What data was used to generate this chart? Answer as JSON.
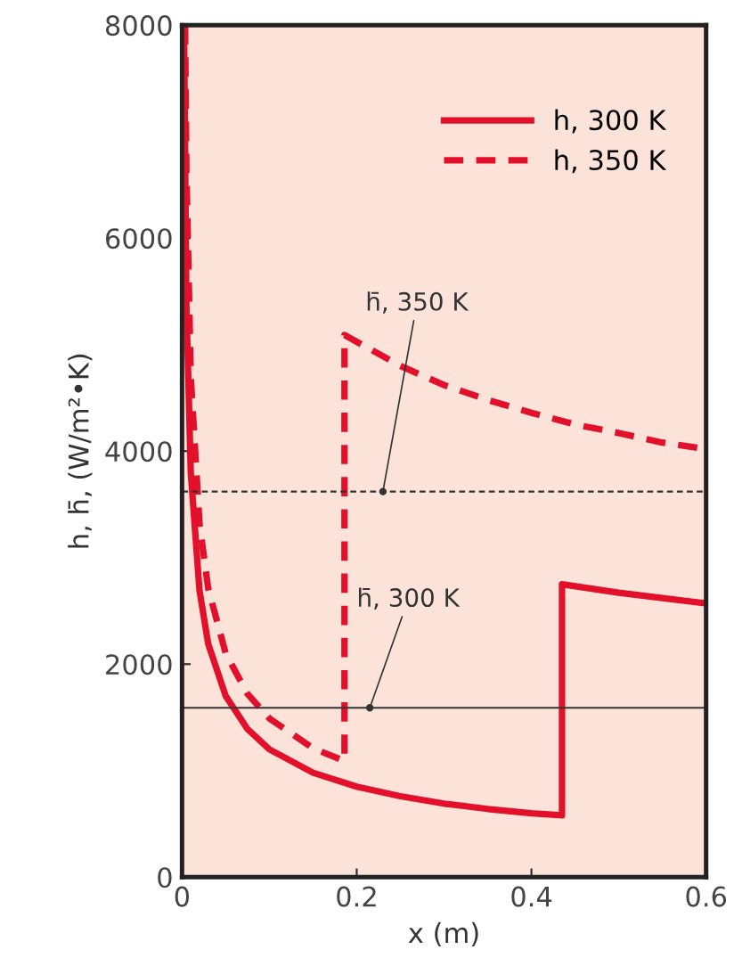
{
  "chart_data": {
    "type": "line",
    "xlabel": "x (m)",
    "ylabel": "h, h̄, (W/m²•K)",
    "xlim": [
      0,
      0.6
    ],
    "ylim": [
      0,
      8000
    ],
    "xticks": [
      0,
      0.2,
      0.4,
      0.6
    ],
    "yticks": [
      0,
      2000,
      4000,
      6000,
      8000
    ],
    "grid": false,
    "legend": "top right",
    "series": [
      {
        "name": "h, 300 K",
        "color": "#e3102b",
        "line_style": "solid",
        "x": [
          0.0023,
          0.005,
          0.01,
          0.02,
          0.03,
          0.05,
          0.075,
          0.1,
          0.15,
          0.2,
          0.25,
          0.3,
          0.35,
          0.4,
          0.435,
          0.435,
          0.5,
          0.55,
          0.6
        ],
        "values": [
          8000,
          5370,
          3800,
          2690,
          2190,
          1700,
          1390,
          1200,
          980,
          850,
          760,
          690,
          640,
          600,
          580,
          2750,
          2670,
          2620,
          2570
        ]
      },
      {
        "name": "h, 350 K",
        "color": "#e3102b",
        "line_style": "dashed",
        "x": [
          0.0035,
          0.005,
          0.01,
          0.02,
          0.03,
          0.05,
          0.075,
          0.1,
          0.15,
          0.186,
          0.186,
          0.25,
          0.3,
          0.35,
          0.4,
          0.45,
          0.5,
          0.55,
          0.6
        ],
        "values": [
          8000,
          6650,
          4700,
          3320,
          2710,
          2100,
          1720,
          1490,
          1210,
          1090,
          5090,
          4800,
          4620,
          4480,
          4360,
          4250,
          4170,
          4080,
          4020
        ]
      }
    ],
    "ref_lines": [
      {
        "axis": "y",
        "value": 3620,
        "color": "#333333",
        "line_style": "dashed"
      },
      {
        "axis": "y",
        "value": 1590,
        "color": "#333333",
        "line_style": "solid"
      }
    ],
    "annotations": [
      {
        "text": "h̄, 350 K",
        "x": 0.23,
        "y": 3620
      },
      {
        "text": "h̄, 300 K",
        "x": 0.215,
        "y": 1590
      }
    ]
  }
}
